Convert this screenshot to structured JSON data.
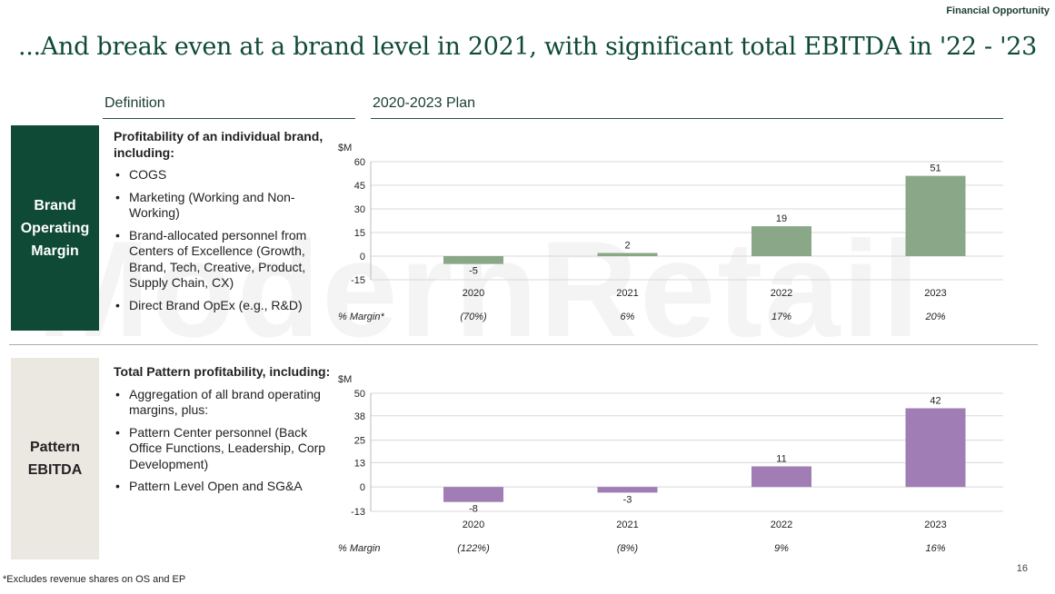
{
  "header": {
    "section": "Financial Opportunity",
    "title": "...And break even at a brand level in 2021, with significant total EBITDA in '22 - '23"
  },
  "columns": {
    "definition": "Definition",
    "plan": "2020-2023 Plan"
  },
  "watermark": "ModernRetail",
  "brand": {
    "label_lines": [
      "Brand",
      "Operating",
      "Margin"
    ],
    "intro": "Profitability of an individual brand, including:",
    "items": [
      "COGS",
      "Marketing (Working and Non-Working)",
      "Brand-allocated personnel from Centers of Excellence (Growth, Brand, Tech, Creative, Product, Supply Chain, CX)",
      "Direct Brand OpEx (e.g., R&D)"
    ]
  },
  "pattern": {
    "label_lines": [
      "Pattern",
      "EBITDA"
    ],
    "intro": "Total Pattern profitability, including:",
    "items": [
      "Aggregation of all brand operating margins, plus:",
      "Pattern Center personnel (Back Office Functions, Leadership, Corp Development)",
      "Pattern Level Open and SG&A"
    ]
  },
  "chart_data": [
    {
      "type": "bar",
      "ylabel": "$M",
      "categories": [
        "2020",
        "2021",
        "2022",
        "2023"
      ],
      "values": [
        -5,
        2,
        19,
        51
      ],
      "value_labels": [
        "-5",
        "2",
        "19",
        "51"
      ],
      "yticks": [
        60,
        45,
        30,
        15,
        0,
        -15
      ],
      "ylim": [
        -15,
        60
      ],
      "color": "#8aa888",
      "margin_label": "% Margin*",
      "margins": [
        "(70%)",
        "6%",
        "17%",
        "20%"
      ]
    },
    {
      "type": "bar",
      "ylabel": "$M",
      "categories": [
        "2020",
        "2021",
        "2022",
        "2023"
      ],
      "values": [
        -8,
        -3,
        11,
        42
      ],
      "value_labels": [
        "-8",
        "-3",
        "11",
        "42"
      ],
      "yticks": [
        50,
        38,
        25,
        13,
        0,
        -13
      ],
      "ylim": [
        -13,
        50
      ],
      "color": "#a07eb5",
      "margin_label": "% Margin",
      "margins": [
        "(122%)",
        "(8%)",
        "9%",
        "16%"
      ]
    }
  ],
  "footnote": "*Excludes revenue shares on OS and EP",
  "page_number": "16"
}
